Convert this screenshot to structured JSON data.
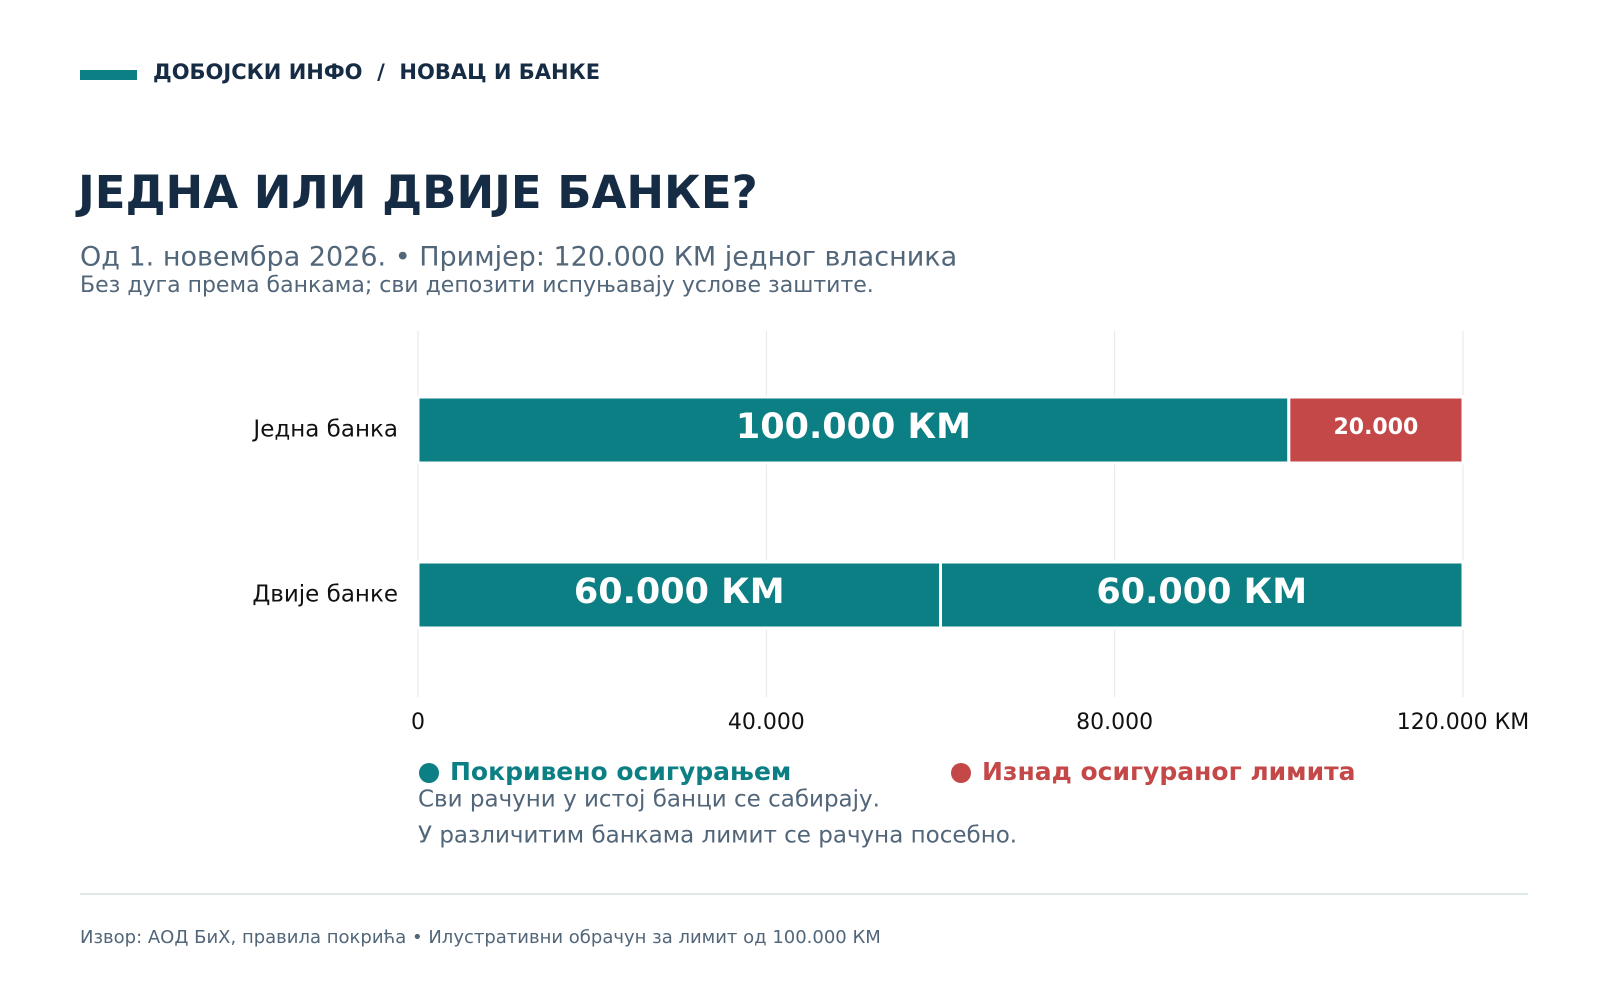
{
  "chart_data": {
    "type": "stacked-barh",
    "brand": "ДОБОЈСКИ ИНФО  /  НОВАЦ И БАНКЕ",
    "title": "ЈЕДНА ИЛИ ДВИЈЕ БАНКЕ?",
    "subtitle": "Од 1. новембра 2026. • Примјер: 120.000 КМ једног власника",
    "subtitle2": "Без дуга према банкама; сви депозити испуњавају услове заштите.",
    "categories": [
      "Једна банка",
      "Двије банке"
    ],
    "series": [
      {
        "name": "Покривено осигурањем",
        "color": "#0b7f83",
        "values": [
          100000,
          60000
        ],
        "value_labels": [
          "100.000 КМ",
          "60.000 КМ"
        ]
      },
      {
        "name": "Изнад осигураног лимита",
        "color": "#c44848",
        "values": [
          20000,
          null
        ],
        "value_labels": [
          "20.000",
          null
        ]
      },
      {
        "color": "#0b7f83",
        "values": [
          null,
          60000
        ],
        "value_labels": [
          null,
          "60.000 КМ"
        ]
      }
    ],
    "xlim": [
      0,
      120000
    ],
    "xticks": [
      0,
      {
        "value": 40000,
        "label": "40.000"
      },
      {
        "value": 80000,
        "label": "80.000"
      },
      {
        "value": 120000,
        "label": "120.000 КМ"
      }
    ],
    "grid": true,
    "notes": [
      "Сви рачуни у истој банци се сабирају.",
      "У различитим банкама лимит се рачуна посебно."
    ],
    "source": "Извор: АОД БиХ, правила покрића • Илустративни обрачун за лимит од 100.000 КМ"
  }
}
